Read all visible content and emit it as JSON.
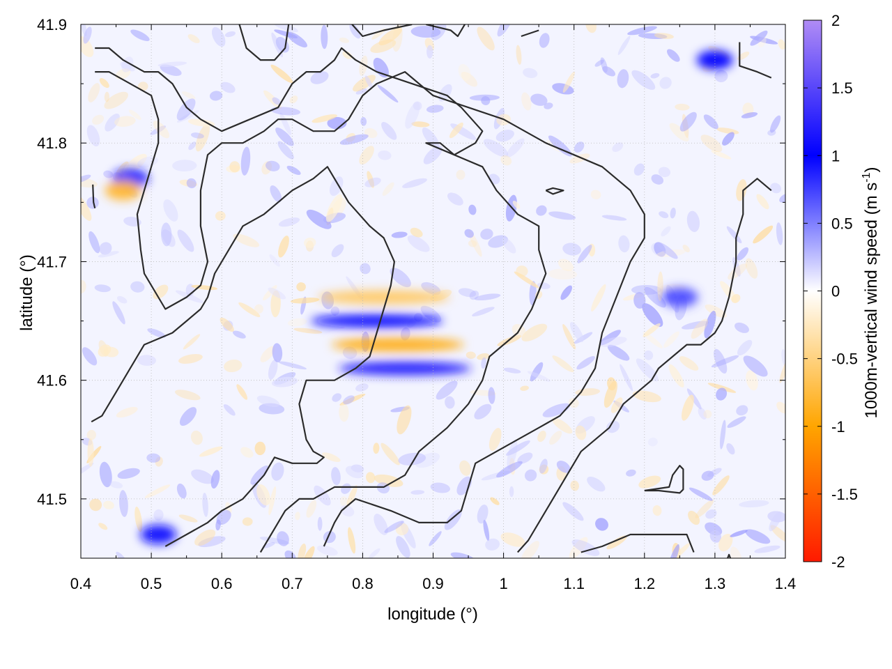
{
  "chart_data": {
    "type": "heatmap",
    "xlabel": "longitude (°)",
    "ylabel": "latitude (°)",
    "xlim": [
      0.4,
      1.4
    ],
    "ylim": [
      41.45,
      41.9
    ],
    "xticks": [
      0.4,
      0.5,
      0.6,
      0.7,
      0.8,
      0.9,
      1.0,
      1.1,
      1.2,
      1.3,
      1.4
    ],
    "yticks": [
      41.5,
      41.6,
      41.7,
      41.8,
      41.9
    ],
    "grid": true,
    "colorbar": {
      "label_main": "1000m-vertical wind speed (m s",
      "label_sup": "-1",
      "label_end": ")",
      "range": [
        -2,
        2
      ],
      "ticks": [
        -2,
        -1.5,
        -1,
        -0.5,
        0,
        0.5,
        1,
        1.5,
        2
      ],
      "tick_labels": [
        "-2",
        "-1.5",
        "-1",
        "-0.5",
        "0",
        "0.5",
        "1",
        "1.5",
        "2"
      ],
      "colors": [
        {
          "value": -2,
          "color": "#ff1a00"
        },
        {
          "value": -1,
          "color": "#ffa500"
        },
        {
          "value": 0,
          "color": "#ffffff"
        },
        {
          "value": 1,
          "color": "#0000ff"
        },
        {
          "value": 2,
          "color": "#b08cf5"
        }
      ]
    },
    "features": [
      {
        "lon": 0.82,
        "lat": 41.65,
        "value": 1.1,
        "label": "updraft band"
      },
      {
        "lon": 0.85,
        "lat": 41.63,
        "value": -0.9,
        "label": "downdraft band"
      },
      {
        "lon": 0.86,
        "lat": 41.61,
        "value": 1.2,
        "label": "updraft band"
      },
      {
        "lon": 0.83,
        "lat": 41.67,
        "value": -0.6,
        "label": "downdraft band"
      },
      {
        "lon": 0.47,
        "lat": 41.77,
        "value": 0.9,
        "label": "updraft"
      },
      {
        "lon": 0.46,
        "lat": 41.76,
        "value": -0.8,
        "label": "downdraft"
      },
      {
        "lon": 1.3,
        "lat": 41.87,
        "value": 1.0,
        "label": "updraft"
      },
      {
        "lon": 1.25,
        "lat": 41.67,
        "value": 0.7,
        "label": "updraft"
      },
      {
        "lon": 0.51,
        "lat": 41.47,
        "value": 1.1,
        "label": "updraft"
      }
    ],
    "contours": [
      [
        [
          0.415,
          41.565
        ],
        [
          0.43,
          41.57
        ],
        [
          0.45,
          41.59
        ],
        [
          0.47,
          41.61
        ],
        [
          0.48,
          41.62
        ],
        [
          0.49,
          41.63
        ],
        [
          0.53,
          41.64
        ],
        [
          0.55,
          41.65
        ],
        [
          0.57,
          41.66
        ],
        [
          0.58,
          41.67
        ],
        [
          0.59,
          41.69
        ],
        [
          0.61,
          41.71
        ],
        [
          0.62,
          41.72
        ],
        [
          0.63,
          41.73
        ],
        [
          0.66,
          41.74
        ],
        [
          0.68,
          41.75
        ],
        [
          0.7,
          41.76
        ],
        [
          0.73,
          41.77
        ],
        [
          0.75,
          41.78
        ],
        [
          0.76,
          41.77
        ],
        [
          0.78,
          41.75
        ],
        [
          0.81,
          41.73
        ],
        [
          0.83,
          41.72
        ],
        [
          0.845,
          41.7
        ],
        [
          0.84,
          41.68
        ],
        [
          0.83,
          41.66
        ],
        [
          0.82,
          41.64
        ],
        [
          0.81,
          41.62
        ],
        [
          0.79,
          41.61
        ],
        [
          0.76,
          41.6
        ],
        [
          0.72,
          41.6
        ],
        [
          0.71,
          41.58
        ],
        [
          0.72,
          41.55
        ],
        [
          0.73,
          41.54
        ],
        [
          0.745,
          41.535
        ],
        [
          0.735,
          41.53
        ],
        [
          0.7,
          41.53
        ],
        [
          0.675,
          41.535
        ],
        [
          0.66,
          41.52
        ],
        [
          0.63,
          41.5
        ],
        [
          0.6,
          41.49
        ],
        [
          0.58,
          41.48
        ],
        [
          0.55,
          41.47
        ],
        [
          0.52,
          41.46
        ]
      ],
      [
        [
          0.655,
          41.455
        ],
        [
          0.67,
          41.47
        ],
        [
          0.69,
          41.49
        ],
        [
          0.71,
          41.5
        ],
        [
          0.73,
          41.5
        ],
        [
          0.76,
          41.51
        ],
        [
          0.79,
          41.51
        ],
        [
          0.83,
          41.51
        ],
        [
          0.86,
          41.52
        ],
        [
          0.88,
          41.54
        ],
        [
          0.92,
          41.56
        ],
        [
          0.95,
          41.58
        ],
        [
          0.97,
          41.6
        ],
        [
          0.98,
          41.62
        ],
        [
          1.0,
          41.63
        ],
        [
          1.02,
          41.64
        ],
        [
          1.04,
          41.66
        ],
        [
          1.06,
          41.69
        ],
        [
          1.05,
          41.71
        ],
        [
          1.05,
          41.73
        ],
        [
          1.02,
          41.74
        ],
        [
          0.99,
          41.76
        ],
        [
          0.97,
          41.78
        ],
        [
          0.93,
          41.79
        ],
        [
          0.89,
          41.8
        ],
        [
          0.91,
          41.8
        ],
        [
          0.93,
          41.79
        ],
        [
          0.96,
          41.8
        ],
        [
          0.97,
          41.81
        ],
        [
          0.94,
          41.83
        ],
        [
          0.92,
          41.84
        ],
        [
          0.87,
          41.85
        ],
        [
          0.82,
          41.86
        ],
        [
          0.79,
          41.87
        ],
        [
          0.77,
          41.88
        ],
        [
          0.76,
          41.87
        ],
        [
          0.74,
          41.86
        ],
        [
          0.72,
          41.86
        ],
        [
          0.7,
          41.85
        ],
        [
          0.68,
          41.83
        ],
        [
          0.64,
          41.82
        ],
        [
          0.6,
          41.81
        ],
        [
          0.57,
          41.82
        ],
        [
          0.55,
          41.83
        ],
        [
          0.53,
          41.85
        ],
        [
          0.51,
          41.86
        ],
        [
          0.5,
          41.86
        ],
        [
          0.49,
          41.86
        ],
        [
          0.46,
          41.87
        ],
        [
          0.44,
          41.88
        ],
        [
          0.42,
          41.88
        ]
      ],
      [
        [
          0.42,
          41.86
        ],
        [
          0.44,
          41.86
        ],
        [
          0.47,
          41.85
        ],
        [
          0.5,
          41.84
        ],
        [
          0.51,
          41.82
        ],
        [
          0.51,
          41.8
        ],
        [
          0.5,
          41.78
        ],
        [
          0.49,
          41.76
        ],
        [
          0.48,
          41.74
        ],
        [
          0.485,
          41.71
        ],
        [
          0.49,
          41.69
        ],
        [
          0.51,
          41.67
        ],
        [
          0.52,
          41.66
        ],
        [
          0.55,
          41.67
        ],
        [
          0.57,
          41.68
        ],
        [
          0.58,
          41.7
        ],
        [
          0.57,
          41.73
        ],
        [
          0.57,
          41.76
        ],
        [
          0.58,
          41.79
        ],
        [
          0.6,
          41.8
        ],
        [
          0.63,
          41.8
        ],
        [
          0.66,
          41.81
        ],
        [
          0.68,
          41.82
        ],
        [
          0.7,
          41.82
        ],
        [
          0.73,
          41.81
        ],
        [
          0.76,
          41.81
        ],
        [
          0.78,
          41.82
        ],
        [
          0.8,
          41.84
        ],
        [
          0.82,
          41.85
        ],
        [
          0.86,
          41.86
        ],
        [
          0.9,
          41.84
        ],
        [
          0.95,
          41.83
        ],
        [
          1.0,
          41.82
        ],
        [
          1.06,
          41.8
        ],
        [
          1.1,
          41.79
        ],
        [
          1.14,
          41.78
        ],
        [
          1.18,
          41.76
        ],
        [
          1.2,
          41.74
        ],
        [
          1.2,
          41.72
        ],
        [
          1.18,
          41.7
        ],
        [
          1.16,
          41.67
        ],
        [
          1.14,
          41.64
        ],
        [
          1.13,
          41.61
        ],
        [
          1.11,
          41.59
        ],
        [
          1.08,
          41.57
        ],
        [
          1.05,
          41.56
        ],
        [
          1.02,
          41.55
        ],
        [
          0.99,
          41.54
        ],
        [
          0.96,
          41.53
        ],
        [
          0.94,
          41.49
        ],
        [
          0.92,
          41.48
        ],
        [
          0.88,
          41.48
        ],
        [
          0.84,
          41.49
        ],
        [
          0.79,
          41.5
        ],
        [
          0.77,
          41.49
        ],
        [
          0.76,
          41.48
        ],
        [
          0.745,
          41.46
        ]
      ],
      [
        [
          1.02,
          41.455
        ],
        [
          1.035,
          41.465
        ],
        [
          1.05,
          41.48
        ],
        [
          1.07,
          41.5
        ],
        [
          1.09,
          41.52
        ],
        [
          1.11,
          41.54
        ],
        [
          1.13,
          41.55
        ],
        [
          1.15,
          41.56
        ],
        [
          1.17,
          41.58
        ],
        [
          1.19,
          41.59
        ],
        [
          1.21,
          41.6
        ],
        [
          1.22,
          41.61
        ],
        [
          1.24,
          41.62
        ],
        [
          1.26,
          41.63
        ],
        [
          1.28,
          41.63
        ],
        [
          1.3,
          41.64
        ],
        [
          1.31,
          41.65
        ],
        [
          1.32,
          41.67
        ],
        [
          1.33,
          41.7
        ],
        [
          1.33,
          41.72
        ],
        [
          1.34,
          41.74
        ],
        [
          1.34,
          41.76
        ],
        [
          1.36,
          41.77
        ],
        [
          1.38,
          41.76
        ]
      ],
      [
        [
          1.11,
          41.455
        ],
        [
          1.14,
          41.46
        ],
        [
          1.18,
          41.47
        ],
        [
          1.22,
          41.47
        ],
        [
          1.26,
          41.47
        ],
        [
          1.27,
          41.455
        ]
      ],
      [
        [
          0.625,
          41.9
        ],
        [
          0.635,
          41.88
        ],
        [
          0.655,
          41.87
        ],
        [
          0.675,
          41.87
        ],
        [
          0.69,
          41.88
        ],
        [
          0.695,
          41.9
        ]
      ],
      [
        [
          0.785,
          41.9
        ],
        [
          0.8,
          41.89
        ],
        [
          0.83,
          41.895
        ],
        [
          0.87,
          41.9
        ]
      ],
      [
        [
          0.89,
          41.9
        ],
        [
          0.925,
          41.895
        ],
        [
          0.935,
          41.89
        ],
        [
          0.945,
          41.9
        ]
      ],
      [
        [
          1.025,
          41.89
        ],
        [
          1.05,
          41.895
        ]
      ],
      [
        [
          1.335,
          41.885
        ],
        [
          1.335,
          41.865
        ],
        [
          1.36,
          41.86
        ],
        [
          1.38,
          41.855
        ]
      ],
      [
        [
          1.06,
          41.76
        ],
        [
          1.07,
          41.762
        ],
        [
          1.085,
          41.76
        ],
        [
          1.07,
          41.757
        ],
        [
          1.06,
          41.76
        ]
      ],
      [
        [
          1.2,
          41.507
        ],
        [
          1.22,
          41.507
        ],
        [
          1.25,
          41.505
        ],
        [
          1.255,
          41.508
        ],
        [
          1.255,
          41.525
        ],
        [
          1.25,
          41.528
        ],
        [
          1.24,
          41.52
        ],
        [
          1.235,
          41.51
        ],
        [
          1.2,
          41.507
        ]
      ],
      [
        [
          0.417,
          41.765
        ],
        [
          0.418,
          41.75
        ],
        [
          0.42,
          41.745
        ]
      ],
      [
        [
          1.318,
          41.45
        ],
        [
          1.32,
          41.453
        ],
        [
          1.322,
          41.45
        ]
      ]
    ]
  }
}
